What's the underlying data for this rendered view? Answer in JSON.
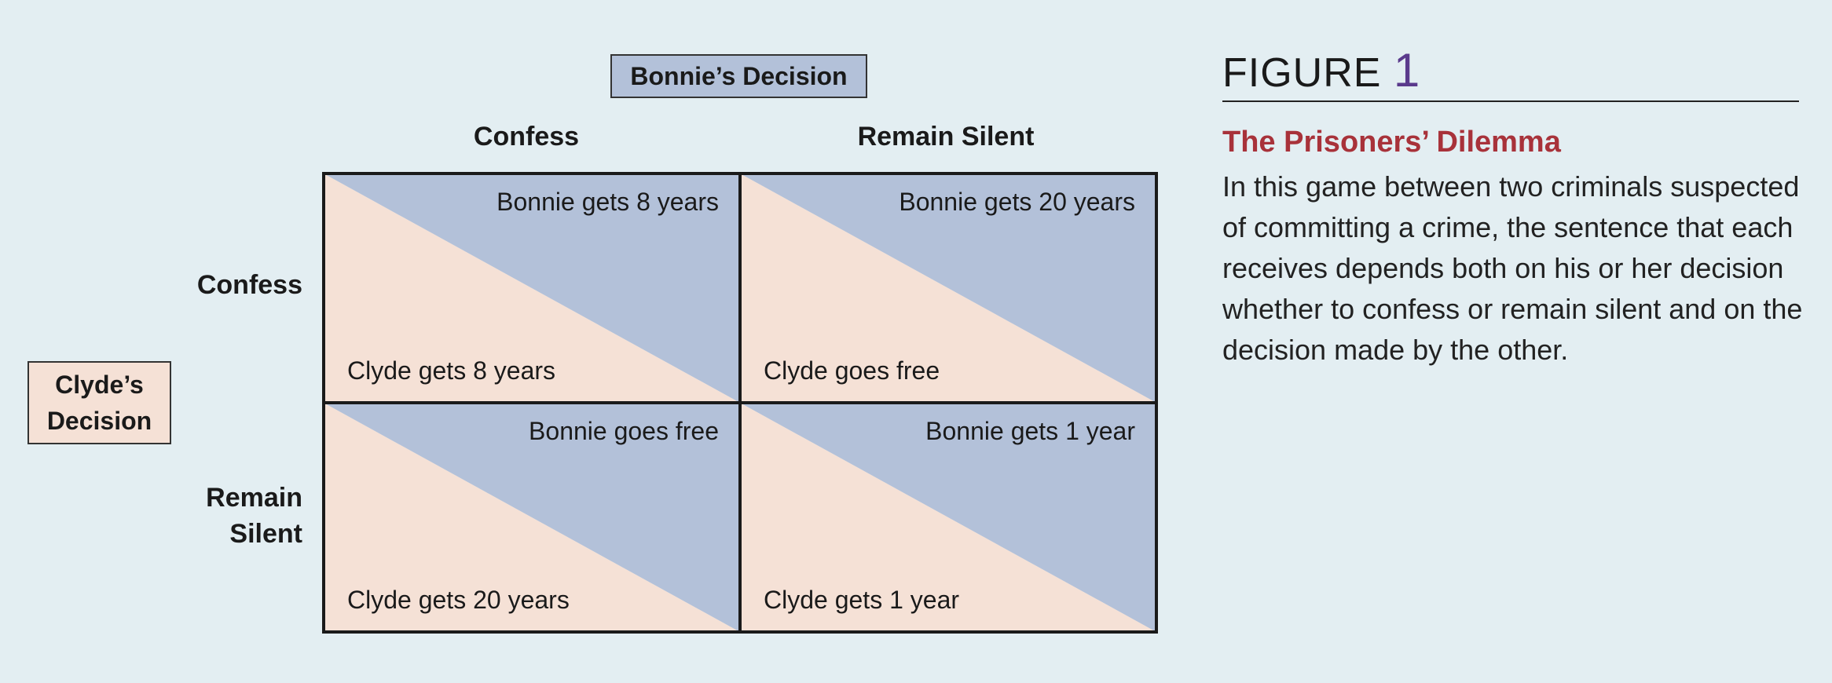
{
  "colors": {
    "background": "#e3eef2",
    "bonnie_fill": "#b3c1d9",
    "clyde_fill": "#f5e1d6",
    "title_red": "#a8323a",
    "figure_number_purple": "#5a3a8c"
  },
  "matrix": {
    "bonnie_label": "Bonnie’s Decision",
    "clyde_label_line1": "Clyde’s",
    "clyde_label_line2": "Decision",
    "columns": [
      "Confess",
      "Remain Silent"
    ],
    "rows": [
      {
        "line1": "Confess",
        "line2": ""
      },
      {
        "line1": "Remain",
        "line2": "Silent"
      }
    ],
    "cells": [
      [
        {
          "bonnie": "Bonnie gets 8 years",
          "clyde": "Clyde gets 8 years"
        },
        {
          "bonnie": "Bonnie gets 20 years",
          "clyde": "Clyde goes free"
        }
      ],
      [
        {
          "bonnie": "Bonnie goes free",
          "clyde": "Clyde gets 20 years"
        },
        {
          "bonnie": "Bonnie gets 1 year",
          "clyde": "Clyde gets 1 year"
        }
      ]
    ]
  },
  "figure": {
    "label": "FIGURE",
    "number": "1",
    "title": "The Prisoners’ Dilemma",
    "body": "In this game between two criminals suspected of committing a crime, the sentence that each receives depends both on his or her decision whether to confess or remain silent and on the decision made by the other."
  }
}
